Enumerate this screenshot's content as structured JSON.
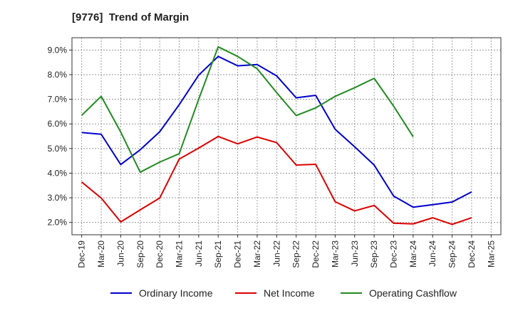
{
  "chart_data": {
    "type": "line",
    "title": "[9776]  Trend of Margin",
    "xlabel": "",
    "ylabel": "",
    "x": [
      "Dec-19",
      "Mar-20",
      "Jun-20",
      "Sep-20",
      "Dec-20",
      "Mar-21",
      "Jun-21",
      "Sep-21",
      "Dec-21",
      "Mar-22",
      "Jun-22",
      "Sep-22",
      "Dec-22",
      "Mar-23",
      "Jun-23",
      "Sep-23",
      "Dec-23",
      "Mar-24",
      "Jun-24",
      "Sep-24",
      "Dec-24",
      "Mar-25"
    ],
    "ylim": [
      1.5,
      9.5
    ],
    "yticks": [
      2.0,
      3.0,
      4.0,
      5.0,
      6.0,
      7.0,
      8.0,
      9.0
    ],
    "ytick_labels": [
      "2.0%",
      "3.0%",
      "4.0%",
      "5.0%",
      "6.0%",
      "7.0%",
      "8.0%",
      "9.0%"
    ],
    "grid": true,
    "legend_position": "bottom",
    "series": [
      {
        "name": "Ordinary Income",
        "color": "#0000cc",
        "values": [
          5.65,
          5.58,
          4.35,
          4.95,
          5.68,
          6.78,
          7.98,
          8.74,
          8.36,
          8.41,
          7.95,
          7.06,
          7.16,
          5.78,
          5.07,
          4.33,
          3.07,
          2.62,
          2.72,
          2.83,
          3.24,
          null
        ]
      },
      {
        "name": "Net Income",
        "color": "#dd0000",
        "values": [
          3.64,
          2.99,
          2.02,
          2.51,
          2.99,
          4.57,
          5.02,
          5.49,
          5.19,
          5.47,
          5.24,
          4.33,
          4.36,
          2.84,
          2.47,
          2.69,
          1.97,
          1.94,
          2.19,
          1.92,
          2.19,
          null
        ]
      },
      {
        "name": "Operating Cashflow",
        "color": "#228B22",
        "values": [
          6.35,
          7.12,
          5.67,
          4.04,
          4.45,
          4.79,
          7.0,
          9.13,
          8.74,
          8.24,
          7.27,
          6.34,
          6.65,
          7.12,
          7.47,
          7.85,
          6.72,
          5.48,
          null,
          null,
          null,
          null
        ]
      }
    ]
  }
}
